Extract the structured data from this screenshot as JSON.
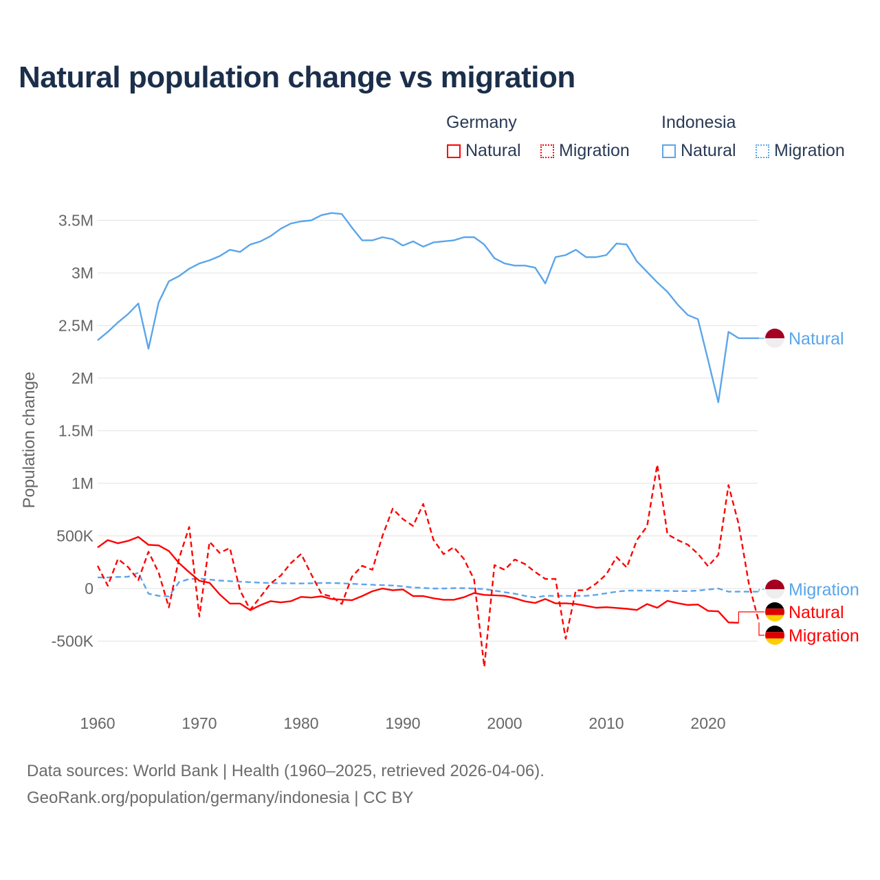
{
  "title": "Natural population change vs migration",
  "legend": {
    "groups": [
      {
        "name": "Germany",
        "items": [
          "Natural",
          "Migration"
        ]
      },
      {
        "name": "Indonesia",
        "items": [
          "Natural",
          "Migration"
        ]
      }
    ]
  },
  "colors": {
    "germany": "#ff0000",
    "indonesia": "#5aa5ea",
    "title": "#1b2f4b"
  },
  "chart_data": {
    "type": "line",
    "title": "Natural population change vs migration",
    "xlabel": "",
    "ylabel": "Population change",
    "xlim": [
      1960,
      2025
    ],
    "ylim": [
      -1000000,
      3700000
    ],
    "x_ticks": [
      1960,
      1970,
      1980,
      1990,
      2000,
      2010,
      2020
    ],
    "x_tick_labels": [
      "1960",
      "1970",
      "1980",
      "1990",
      "2000",
      "2010",
      "2020"
    ],
    "y_ticks": [
      -500000,
      0,
      500000,
      1000000,
      1500000,
      2000000,
      2500000,
      3000000,
      3500000
    ],
    "y_tick_labels": [
      "-500K",
      "0",
      "500K",
      "1M",
      "1.5M",
      "2M",
      "2.5M",
      "3M",
      "3.5M"
    ],
    "grid": true,
    "x_start": 1960,
    "series": [
      {
        "name": "Natural",
        "country": "Indonesia",
        "color": "#5aa5ea",
        "dash": false,
        "end_label": "Natural",
        "values": [
          2360000,
          2440000,
          2530000,
          2610000,
          2710000,
          2280000,
          2720000,
          2920000,
          2970000,
          3040000,
          3090000,
          3120000,
          3160000,
          3220000,
          3200000,
          3270000,
          3300000,
          3350000,
          3420000,
          3470000,
          3490000,
          3500000,
          3550000,
          3570000,
          3560000,
          3430000,
          3310000,
          3310000,
          3340000,
          3320000,
          3260000,
          3300000,
          3250000,
          3290000,
          3300000,
          3310000,
          3340000,
          3340000,
          3270000,
          3140000,
          3090000,
          3070000,
          3070000,
          3050000,
          2900000,
          3150000,
          3170000,
          3220000,
          3150000,
          3150000,
          3170000,
          3280000,
          3270000,
          3110000,
          3010000,
          2910000,
          2820000,
          2700000,
          2600000,
          2560000,
          2170000,
          1770000,
          2440000,
          2380000,
          2380000,
          2380000
        ]
      },
      {
        "name": "Migration",
        "country": "Indonesia",
        "color": "#5aa5ea",
        "dash": true,
        "end_label": "Migration",
        "values": [
          105000,
          105000,
          110000,
          112000,
          150000,
          -50000,
          -70000,
          -75000,
          60000,
          90000,
          95000,
          85000,
          75000,
          70000,
          65000,
          60000,
          55000,
          52000,
          50000,
          50000,
          48000,
          50000,
          52000,
          52000,
          50000,
          45000,
          40000,
          35000,
          32000,
          28000,
          20000,
          10000,
          5000,
          0,
          0,
          3000,
          3000,
          0,
          -5000,
          -20000,
          -35000,
          -50000,
          -70000,
          -85000,
          -70000,
          -70000,
          -70000,
          -70000,
          -70000,
          -60000,
          -45000,
          -30000,
          -20000,
          -20000,
          -20000,
          -20000,
          -22000,
          -25000,
          -25000,
          -20000,
          -10000,
          0,
          -30000,
          -30000,
          -30000,
          -30000
        ]
      },
      {
        "name": "Natural",
        "country": "Germany",
        "color": "#ff0000",
        "dash": false,
        "end_label": "Natural",
        "values": [
          390000,
          460000,
          430000,
          453000,
          490000,
          415000,
          410000,
          357000,
          242000,
          155000,
          73000,
          54000,
          -56000,
          -143000,
          -143000,
          -206000,
          -158000,
          -120000,
          -132000,
          -120000,
          -80000,
          -86000,
          -74000,
          -100000,
          -106000,
          -111000,
          -72000,
          -26000,
          0,
          -17000,
          -9000,
          -72000,
          -72000,
          -93000,
          -107000,
          -107000,
          -83000,
          -43000,
          -61000,
          -65000,
          -70000,
          -93000,
          -122000,
          -137000,
          -100000,
          -141000,
          -141000,
          -148000,
          -165000,
          -183000,
          -178000,
          -185000,
          -193000,
          -204000,
          -148000,
          -183000,
          -117000,
          -139000,
          -157000,
          -152000,
          -213000,
          -217000,
          -322000,
          -326000,
          null,
          null
        ]
      },
      {
        "name": "Migration",
        "country": "Germany",
        "color": "#ff0000",
        "dash": true,
        "end_label": "Migration",
        "values": [
          216000,
          26000,
          281000,
          203000,
          80000,
          350000,
          150000,
          -180000,
          285000,
          585000,
          -266000,
          444000,
          338000,
          385000,
          -20000,
          -201000,
          -80000,
          48000,
          123000,
          242000,
          329000,
          134000,
          -50000,
          -78000,
          -147000,
          113000,
          216000,
          178000,
          502000,
          758000,
          660000,
          595000,
          804000,
          464000,
          327000,
          392000,
          281000,
          85000,
          -746000,
          222000,
          178000,
          276000,
          233000,
          157000,
          91000,
          91000,
          -478000,
          -17000,
          -17000,
          48000,
          135000,
          298000,
          200000,
          461000,
          591000,
          1178000,
          516000,
          461000,
          417000,
          330000,
          211000,
          320000,
          983000,
          613000,
          48000,
          -322000
        ]
      }
    ]
  },
  "footer": {
    "line1": "Data sources: World Bank | Health (1960–2025, retrieved 2026-04-06).",
    "line2": "GeoRank.org/population/germany/indonesia | CC BY"
  }
}
